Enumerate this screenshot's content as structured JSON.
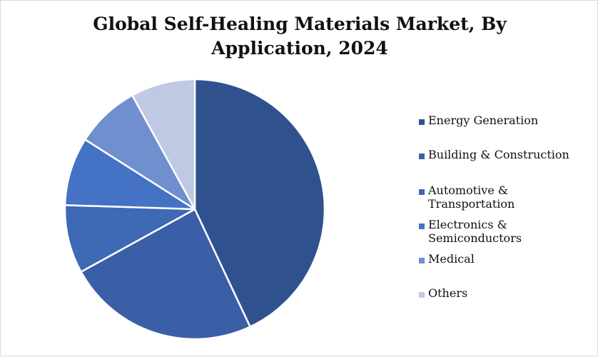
{
  "chart_data": {
    "type": "pie",
    "title_lines": [
      "Global Self-Healing Materials Market, By",
      "Application, 2024"
    ],
    "categories": [
      "Energy Generation",
      "Building & Construction",
      "Automotive & Transportation",
      "Electronics & Semiconductors",
      "Medical",
      "Others"
    ],
    "legend_lines": [
      [
        "Energy Generation"
      ],
      [
        "Building & Construction"
      ],
      [
        "Automotive &",
        "Transportation"
      ],
      [
        "Electronics &",
        "Semiconductors"
      ],
      [
        "Medical"
      ],
      [
        "Others"
      ]
    ],
    "values": [
      43,
      24,
      8.5,
      8.5,
      8,
      8
    ],
    "unit": "%",
    "colors": [
      "#2f528f",
      "#3a5fa6",
      "#3e69b4",
      "#4472c4",
      "#6f8fce",
      "#bfc9e4"
    ],
    "legend_placement": "right",
    "start_angle": "12 o'clock",
    "direction": "clockwise",
    "slice_border_color": "#ffffff"
  }
}
